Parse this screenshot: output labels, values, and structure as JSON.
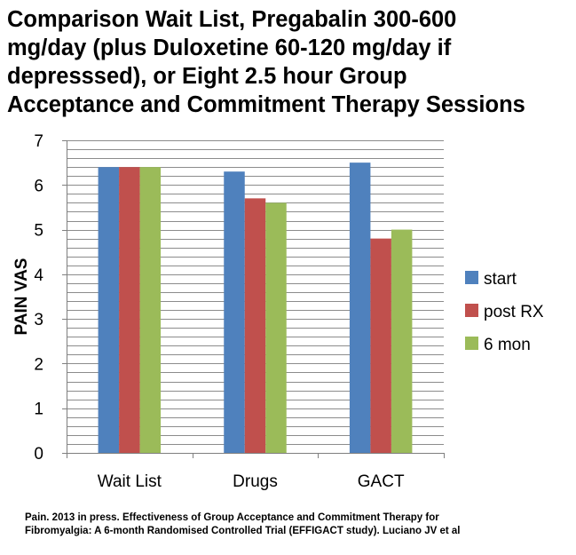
{
  "chart_data": {
    "type": "bar",
    "title_lines": [
      "Comparison Wait List, Pregabalin 300-600",
      "mg/day (plus Duloxetine 60-120 mg/day if",
      "depresssed), or Eight 2.5 hour Group",
      "Acceptance and Commitment Therapy Sessions"
    ],
    "xlabel": "",
    "ylabel": "PAIN VAS",
    "ylim": [
      0,
      7
    ],
    "y_ticks": [
      "0",
      "1",
      "2",
      "3",
      "4",
      "5",
      "6",
      "7"
    ],
    "minor_grid_step": 0.2,
    "grid": true,
    "legend_position": "right",
    "categories": [
      "Wait List",
      "Drugs",
      "GACT"
    ],
    "series": [
      {
        "name": "start",
        "color": "#4F81BD",
        "values": [
          6.4,
          6.3,
          6.5
        ]
      },
      {
        "name": "post RX",
        "color": "#C0504D",
        "values": [
          6.4,
          5.7,
          4.8
        ]
      },
      {
        "name": "6 mon",
        "color": "#9BBB59",
        "values": [
          6.4,
          5.6,
          5.0
        ]
      }
    ]
  },
  "citation_lines": [
    "Pain. 2013 in press. Effectiveness of Group Acceptance and Commitment Therapy for",
    "Fibromyalgia: A 6-month Randomised Controlled Trial (EFFIGACT study). Luciano JV et al"
  ]
}
